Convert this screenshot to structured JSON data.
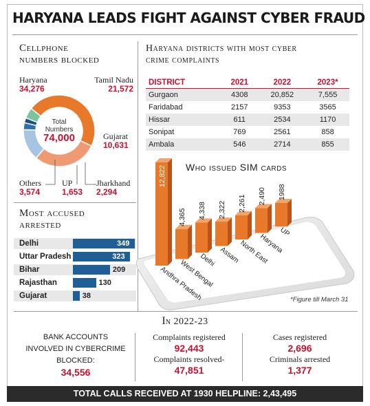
{
  "headline": "HARYANA LEADS FIGHT AGAINST CYBER FRAUD",
  "cellphone": {
    "title_line1": "Cellphone",
    "title_line2": "numbers blocked",
    "center_label": "Total Numbers",
    "center_value": "74,000",
    "segments": [
      {
        "name": "Haryana",
        "value_label": "34,276",
        "value": 34276,
        "color": "#e8782a"
      },
      {
        "name": "Tamil Nadu",
        "value_label": "21,572",
        "value": 21572,
        "color": "#ef9a72"
      },
      {
        "name": "Gujarat",
        "value_label": "10,631",
        "value": 10631,
        "color": "#a7c4e3"
      },
      {
        "name": "Jharkhand",
        "value_label": "2,294",
        "value": 2294,
        "color": "#2f6fad"
      },
      {
        "name": "UP",
        "value_label": "1,653",
        "value": 1653,
        "color": "#1c4f86"
      },
      {
        "name": "Others",
        "value_label": "3,574",
        "value": 3574,
        "color": "#7cc49b"
      }
    ]
  },
  "districts": {
    "title_line1": "Haryana districts with most cyber",
    "title_line2": "crime complaints",
    "headers": [
      "DISTRICT",
      "2021",
      "2022",
      "2023*"
    ],
    "rows": [
      [
        "Gurgaon",
        "4308",
        "20,852",
        "7,555"
      ],
      [
        "Faridabad",
        "2157",
        "9353",
        "3565"
      ],
      [
        "Hissar",
        "611",
        "2534",
        "1170"
      ],
      [
        "Sonipat",
        "769",
        "2561",
        "858"
      ],
      [
        "Ambala",
        "546",
        "2714",
        "855"
      ]
    ]
  },
  "arrested": {
    "title_line1": "Most accused",
    "title_line2": "arrested",
    "items": [
      {
        "state": "Delhi",
        "value": 349,
        "label": "349"
      },
      {
        "state": "Uttar Pradesh",
        "value": 323,
        "label": "323"
      },
      {
        "state": "Bihar",
        "value": 209,
        "label": "209"
      },
      {
        "state": "Rajasthan",
        "value": 130,
        "label": "130"
      },
      {
        "state": "Gujarat",
        "value": 38,
        "label": "38"
      }
    ]
  },
  "sim": {
    "title": "Who issued SIM cards",
    "footnote": "*Figure till March 31"
  },
  "chart_data": {
    "type": "bar",
    "title": "Who issued SIM cards",
    "categories": [
      "Andhra Pradesh",
      "West Bengal",
      "Delhi",
      "Assam",
      "North East",
      "Haryana",
      "UP"
    ],
    "values": [
      12822,
      4365,
      4338,
      2322,
      2261,
      2490,
      1988
    ],
    "value_labels": [
      "12,822",
      "4,365",
      "4,338",
      "2,322",
      "2,261",
      "2,490",
      "1988"
    ],
    "color": "#e8782a"
  },
  "period": {
    "label_cap": "I",
    "label_rest": "n 2022-23"
  },
  "stats": {
    "bank_line1": "BANK ACCOUNTS",
    "bank_line2": "INVOLVED IN CYBERCRIME",
    "bank_line3": "BLOCKED:",
    "bank_value": "34,556",
    "complaints_registered_label": "Complaints registered",
    "complaints_registered_value": "92,443",
    "complaints_resolved_label": "Complaints resolved-",
    "complaints_resolved_value": "47,851",
    "cases_label": "Cases registered",
    "cases_value": "2,696",
    "criminals_label": "Criminals arrested",
    "criminals_value": "1,377"
  },
  "footer": "TOTAL CALLS RECEIVED AT 1930 HELPLINE: 2,43,495"
}
